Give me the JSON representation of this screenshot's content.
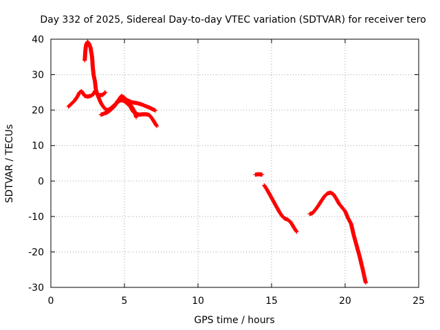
{
  "chart_data": {
    "type": "scatter",
    "title": "Day 332 of 2025, Sidereal Day-to-day VTEC variation (SDTVAR) for receiver tero",
    "xlabel": "GPS time / hours",
    "ylabel": "SDTVAR / TECUs",
    "xlim": [
      0,
      25
    ],
    "ylim": [
      -30,
      40
    ],
    "xticks": [
      0,
      5,
      10,
      15,
      20,
      25
    ],
    "yticks": [
      -30,
      -20,
      -10,
      0,
      10,
      20,
      30,
      40
    ],
    "grid": true,
    "marker": "plus",
    "color": "#ff0000",
    "series": [
      {
        "segments": [
          [
            [
              1.2,
              21
            ],
            [
              1.4,
              21.8
            ],
            [
              1.6,
              22.6
            ],
            [
              1.8,
              23.8
            ],
            [
              1.95,
              25
            ],
            [
              2.1,
              25.3
            ],
            [
              2.3,
              24
            ],
            [
              2.5,
              23.8
            ],
            [
              2.7,
              24
            ],
            [
              2.9,
              24.5
            ],
            [
              3.0,
              25.4
            ],
            [
              3.15,
              24.5
            ],
            [
              3.3,
              24.2
            ],
            [
              3.5,
              24.3
            ],
            [
              3.6,
              24.6
            ],
            [
              3.7,
              25
            ]
          ],
          [
            [
              2.3,
              34
            ],
            [
              2.35,
              37
            ],
            [
              2.4,
              38.5
            ],
            [
              2.5,
              39.3
            ],
            [
              2.6,
              38.7
            ],
            [
              2.7,
              37.5
            ],
            [
              2.8,
              35
            ],
            [
              2.85,
              32
            ],
            [
              2.9,
              30
            ],
            [
              3.0,
              28
            ],
            [
              3.05,
              26
            ],
            [
              3.15,
              24.5
            ],
            [
              3.3,
              23
            ],
            [
              3.4,
              22
            ],
            [
              3.55,
              21
            ],
            [
              3.7,
              20.3
            ],
            [
              3.85,
              20
            ],
            [
              4.0,
              20.3
            ],
            [
              4.2,
              21
            ],
            [
              4.4,
              21.8
            ],
            [
              4.6,
              22.5
            ],
            [
              4.8,
              22.8
            ],
            [
              5.0,
              22.5
            ],
            [
              5.2,
              21.8
            ],
            [
              5.4,
              21
            ],
            [
              5.5,
              20.2
            ],
            [
              5.6,
              19.5
            ],
            [
              5.8,
              19
            ],
            [
              6.0,
              18.7
            ],
            [
              6.2,
              18.8
            ],
            [
              6.5,
              18.8
            ],
            [
              6.7,
              18.6
            ],
            [
              6.9,
              17.5
            ],
            [
              7.05,
              16.5
            ],
            [
              7.2,
              15.5
            ]
          ],
          [
            [
              3.4,
              18.7
            ],
            [
              3.6,
              19
            ],
            [
              3.8,
              19.3
            ],
            [
              4.0,
              19.8
            ],
            [
              4.3,
              21
            ],
            [
              4.5,
              22
            ],
            [
              4.7,
              23.5
            ],
            [
              4.8,
              24
            ],
            [
              5.0,
              23.5
            ],
            [
              5.2,
              22.5
            ],
            [
              5.5,
              21
            ],
            [
              5.7,
              19.5
            ],
            [
              5.8,
              18
            ]
          ],
          [
            [
              4.5,
              22.5
            ],
            [
              4.8,
              23
            ],
            [
              5.0,
              23
            ],
            [
              5.2,
              22.8
            ],
            [
              5.5,
              22.2
            ],
            [
              5.8,
              22
            ],
            [
              6.1,
              21.7
            ],
            [
              6.4,
              21.2
            ],
            [
              6.7,
              20.7
            ],
            [
              6.9,
              20.3
            ],
            [
              7.1,
              19.9
            ]
          ],
          [
            [
              13.9,
              1.8
            ],
            [
              14.05,
              1.9
            ],
            [
              14.2,
              1.9
            ],
            [
              14.35,
              1.8
            ]
          ],
          [
            [
              14.5,
              -1.2
            ],
            [
              14.7,
              -2.5
            ],
            [
              14.9,
              -4
            ],
            [
              15.1,
              -5.5
            ],
            [
              15.3,
              -7
            ],
            [
              15.5,
              -8.5
            ],
            [
              15.7,
              -9.8
            ],
            [
              15.9,
              -10.6
            ],
            [
              16.1,
              -10.9
            ],
            [
              16.3,
              -11.6
            ],
            [
              16.5,
              -13
            ],
            [
              16.7,
              -14.3
            ]
          ],
          [
            [
              17.6,
              -9.3
            ],
            [
              17.8,
              -9
            ],
            [
              18.0,
              -8
            ],
            [
              18.2,
              -6.8
            ],
            [
              18.4,
              -5.5
            ],
            [
              18.6,
              -4.3
            ],
            [
              18.8,
              -3.5
            ],
            [
              19.0,
              -3.3
            ],
            [
              19.2,
              -3.7
            ],
            [
              19.4,
              -5
            ],
            [
              19.6,
              -6.5
            ],
            [
              19.8,
              -7.5
            ],
            [
              20.0,
              -8.5
            ],
            [
              20.2,
              -10.5
            ],
            [
              20.4,
              -12
            ],
            [
              20.6,
              -15.5
            ],
            [
              20.8,
              -18.5
            ],
            [
              21.0,
              -21.5
            ],
            [
              21.2,
              -25
            ],
            [
              21.4,
              -28.7
            ]
          ]
        ]
      }
    ]
  }
}
